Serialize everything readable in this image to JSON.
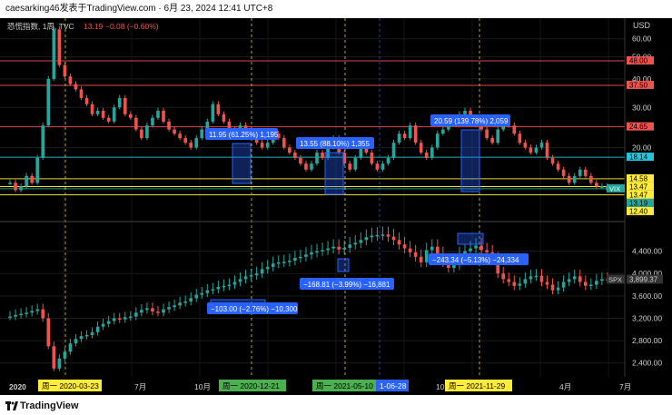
{
  "header": {
    "caption": "caesarking46发表于TradingView.com · 6月 23, 2024 12:41 UTC+8"
  },
  "legend": {
    "name": "恐慌指数, 1周, TVC",
    "value": "13.19",
    "change": "−0.08 (−0.60%)"
  },
  "price_axis_unit": "USD",
  "footer": {
    "brand": "TradingView"
  },
  "colors": {
    "up": "#26a69a",
    "down": "#ef5350",
    "bg": "#000000",
    "measure": "#2962ff"
  },
  "chart_data": [
    {
      "type": "candlestick",
      "title": "恐慌指数, 1周, TVC",
      "y_ticks": [
        "60.00",
        "50.00",
        "40.00",
        "30.00",
        "20.00"
      ],
      "ylim": [
        10,
        65
      ],
      "log_scale": true,
      "series": [
        {
          "name": "VIX",
          "values": [
            14,
            13,
            13.5,
            15,
            14,
            18,
            25,
            40,
            66,
            46,
            41,
            38,
            36,
            33,
            31,
            28,
            29,
            27,
            26,
            30,
            33,
            28,
            27,
            24,
            22,
            25,
            27,
            29,
            26,
            24,
            23,
            22,
            21,
            20,
            22,
            24,
            26,
            31,
            28,
            26,
            24,
            22,
            25,
            24,
            22,
            21,
            20,
            21,
            23,
            22,
            20,
            19,
            18,
            17,
            16,
            17,
            19,
            18,
            20,
            22,
            19,
            17,
            16,
            18,
            20,
            19,
            17,
            16,
            17,
            18,
            21,
            23,
            22,
            25,
            21,
            19,
            18,
            20,
            23,
            24,
            27,
            26,
            28,
            29,
            27,
            25,
            24,
            22,
            21,
            24,
            26,
            25,
            23,
            21,
            20,
            19,
            20,
            21,
            18,
            17,
            16,
            15,
            14,
            15,
            16,
            15,
            14,
            13.5,
            13.5,
            13,
            13.2,
            13.19
          ]
        }
      ],
      "horizontal_levels": [
        {
          "label": "48.00",
          "value": 48.0,
          "color": "#ef5350"
        },
        {
          "label": "37.50",
          "value": 37.5,
          "color": "#ef5350"
        },
        {
          "label": "24.65",
          "value": 24.65,
          "color": "#ef5350"
        },
        {
          "label": "18.14",
          "value": 18.14,
          "color": "#26c6da"
        },
        {
          "label": "14.58",
          "value": 14.58,
          "color": "#ffeb3b"
        },
        {
          "label": "13.47",
          "value": 13.47,
          "color": "#ffeb3b"
        },
        {
          "label": "13.47",
          "value": 13.47,
          "color": "#ffeb3b"
        },
        {
          "label": "13.19",
          "value": 13.19,
          "color": "#26a69a"
        },
        {
          "label": "12.40",
          "value": 12.4,
          "color": "#ffeb3b"
        }
      ],
      "series_tag": "VIX",
      "measurements": [
        {
          "text": "11.95 (61.25%) 1,195"
        },
        {
          "text": "13.55 (88.10%) 1,355"
        },
        {
          "text": "20.59 (139.78%) 2,059"
        }
      ]
    },
    {
      "type": "candlestick",
      "y_ticks": [
        "4,400.00",
        "4,000.00",
        "3,600.00",
        "3,200.00",
        "2,800.00",
        "2,400.00"
      ],
      "ylim": [
        2200,
        4800
      ],
      "series": [
        {
          "name": "SPX",
          "values": [
            3230,
            3260,
            3280,
            3300,
            3330,
            3360,
            3200,
            2700,
            2300,
            2480,
            2600,
            2750,
            2830,
            2880,
            2900,
            2950,
            3050,
            3100,
            3150,
            3200,
            3180,
            3220,
            3230,
            3300,
            3350,
            3380,
            3320,
            3300,
            3360,
            3400,
            3430,
            3480,
            3500,
            3560,
            3620,
            3650,
            3700,
            3720,
            3760,
            3780,
            3800,
            3850,
            3900,
            3950,
            3970,
            4000,
            4080,
            4120,
            4180,
            4200,
            4210,
            4230,
            4280,
            4300,
            4340,
            4380,
            4400,
            4420,
            4450,
            4480,
            4430,
            4460,
            4520,
            4550,
            4600,
            4650,
            4680,
            4690,
            4700,
            4660,
            4600,
            4520,
            4450,
            4380,
            4300,
            4200,
            4420,
            4480,
            4350,
            4200,
            4100,
            4150,
            4350,
            4400,
            4450,
            4500,
            4420,
            4380,
            4260,
            4000,
            3900,
            3850,
            3780,
            3820,
            3900,
            3950,
            3960,
            3850,
            3800,
            3700,
            3750,
            3850,
            3900,
            3950,
            3850,
            3780,
            3800,
            3870,
            3900,
            3899.37
          ]
        }
      ],
      "series_tag": "SPX",
      "last_price_label": "3,899.37",
      "measurements": [
        {
          "text": "−103.00 (−2.76%) −10,300"
        },
        {
          "text": "−168.81 (−3.99%) −16,881"
        },
        {
          "text": "−243.34 (−5.13%) −24,334"
        }
      ]
    }
  ],
  "time_axis": {
    "labels": [
      "2020",
      "7月",
      "10月",
      "7月",
      "10月",
      "4月",
      "7月"
    ],
    "date_tags": [
      "周一 2020-03-23",
      "周一 2020-12-21",
      "周一 2021-05-10",
      "1-06-28",
      "周一 2021-11-29"
    ]
  }
}
